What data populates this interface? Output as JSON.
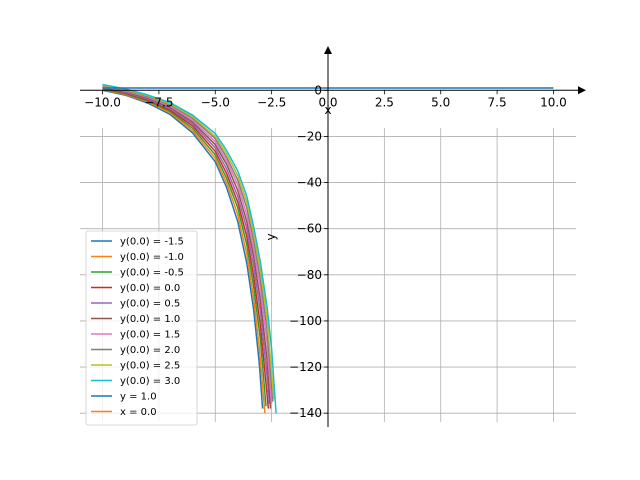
{
  "chart_data": {
    "type": "line",
    "title": "",
    "xlabel": "x",
    "ylabel": "y",
    "xlim": [
      -11,
      11
    ],
    "ylim": [
      -146,
      14
    ],
    "grid": true,
    "legend_position": "lower-left",
    "xticks": [
      -10.0,
      -7.5,
      -5.0,
      -2.5,
      0.0,
      2.5,
      5.0,
      7.5,
      10.0
    ],
    "xtick_labels": [
      "−10.0",
      "−7.5",
      "−5.0",
      "−2.5",
      "0.0",
      "2.5",
      "5.0",
      "7.5",
      "10.0"
    ],
    "yticks": [
      0,
      -20,
      -40,
      -60,
      -80,
      -100,
      -120,
      -140
    ],
    "ytick_labels": [
      "0",
      "−20",
      "−40",
      "−60",
      "−80",
      "−100",
      "−120",
      "−140"
    ],
    "series": [
      {
        "name": "y(0.0) = -1.5",
        "color": "#1f77b4",
        "points": [
          [
            -10.0,
            0.0
          ],
          [
            -9.0,
            -2.1
          ],
          [
            -8.0,
            -5.5
          ],
          [
            -7.0,
            -10.5
          ],
          [
            -6.0,
            -18.5
          ],
          [
            -5.0,
            -31.0
          ],
          [
            -4.5,
            -42.0
          ],
          [
            -4.0,
            -57.0
          ],
          [
            -3.6,
            -75.0
          ],
          [
            -3.3,
            -95.0
          ],
          [
            -3.05,
            -118.0
          ],
          [
            -2.9,
            -138.0
          ]
        ]
      },
      {
        "name": "y(0.0) = -1.0",
        "color": "#ff7f0e",
        "points": [
          [
            -10.0,
            0.3
          ],
          [
            -9.0,
            -1.8
          ],
          [
            -8.0,
            -5.0
          ],
          [
            -7.0,
            -9.8
          ],
          [
            -6.0,
            -17.5
          ],
          [
            -5.0,
            -29.5
          ],
          [
            -4.5,
            -40.0
          ],
          [
            -4.0,
            -54.0
          ],
          [
            -3.6,
            -71.0
          ],
          [
            -3.3,
            -90.0
          ],
          [
            -3.05,
            -111.0
          ],
          [
            -2.8,
            -140.0
          ]
        ]
      },
      {
        "name": "y(0.0) = -0.5",
        "color": "#2ca02c",
        "points": [
          [
            -10.0,
            0.6
          ],
          [
            -9.0,
            -1.5
          ],
          [
            -8.0,
            -4.6
          ],
          [
            -7.0,
            -9.2
          ],
          [
            -6.0,
            -16.5
          ],
          [
            -5.0,
            -28.0
          ],
          [
            -4.5,
            -38.0
          ],
          [
            -4.0,
            -51.0
          ],
          [
            -3.6,
            -67.0
          ],
          [
            -3.3,
            -85.0
          ],
          [
            -3.0,
            -108.0
          ],
          [
            -2.75,
            -137.0
          ]
        ]
      },
      {
        "name": "y(0.0) = 0.0",
        "color": "#d62728",
        "points": [
          [
            -10.0,
            0.9
          ],
          [
            -9.0,
            -1.2
          ],
          [
            -8.0,
            -4.2
          ],
          [
            -7.0,
            -8.6
          ],
          [
            -6.0,
            -15.5
          ],
          [
            -5.0,
            -26.5
          ],
          [
            -4.5,
            -36.0
          ],
          [
            -4.0,
            -48.5
          ],
          [
            -3.6,
            -63.5
          ],
          [
            -3.3,
            -80.5
          ],
          [
            -3.0,
            -102.0
          ],
          [
            -2.7,
            -132.0
          ],
          [
            -2.65,
            -138.0
          ]
        ]
      },
      {
        "name": "y(0.0) = 0.5",
        "color": "#9467bd",
        "points": [
          [
            -10.0,
            1.1
          ],
          [
            -9.0,
            -0.9
          ],
          [
            -8.0,
            -3.8
          ],
          [
            -7.0,
            -8.0
          ],
          [
            -6.0,
            -14.6
          ],
          [
            -5.0,
            -25.0
          ],
          [
            -4.5,
            -34.0
          ],
          [
            -4.0,
            -46.0
          ],
          [
            -3.6,
            -60.0
          ],
          [
            -3.3,
            -76.0
          ],
          [
            -3.0,
            -96.0
          ],
          [
            -2.7,
            -124.0
          ],
          [
            -2.6,
            -136.0
          ]
        ]
      },
      {
        "name": "y(0.0) = 1.0",
        "color": "#8c564b",
        "points": [
          [
            -10.0,
            1.4
          ],
          [
            -9.0,
            -0.6
          ],
          [
            -8.0,
            -3.4
          ],
          [
            -7.0,
            -7.4
          ],
          [
            -6.0,
            -13.8
          ],
          [
            -5.0,
            -23.6
          ],
          [
            -4.5,
            -32.0
          ],
          [
            -4.0,
            -43.5
          ],
          [
            -3.6,
            -57.0
          ],
          [
            -3.3,
            -72.0
          ],
          [
            -3.0,
            -91.0
          ],
          [
            -2.7,
            -117.0
          ],
          [
            -2.55,
            -138.0
          ]
        ]
      },
      {
        "name": "y(0.0) = 1.5",
        "color": "#e377c2",
        "points": [
          [
            -10.0,
            1.7
          ],
          [
            -9.0,
            -0.3
          ],
          [
            -8.0,
            -3.0
          ],
          [
            -7.0,
            -6.9
          ],
          [
            -6.0,
            -13.0
          ],
          [
            -5.0,
            -22.3
          ],
          [
            -4.5,
            -30.5
          ],
          [
            -4.0,
            -41.0
          ],
          [
            -3.6,
            -54.0
          ],
          [
            -3.3,
            -68.5
          ],
          [
            -3.0,
            -86.0
          ],
          [
            -2.7,
            -110.0
          ],
          [
            -2.5,
            -136.0
          ]
        ]
      },
      {
        "name": "y(0.0) = 2.0",
        "color": "#7f7f7f",
        "points": [
          [
            -10.0,
            2.0
          ],
          [
            -9.0,
            0.0
          ],
          [
            -8.0,
            -2.7
          ],
          [
            -7.0,
            -6.4
          ],
          [
            -6.0,
            -12.2
          ],
          [
            -5.0,
            -21.0
          ],
          [
            -4.5,
            -29.0
          ],
          [
            -4.0,
            -39.0
          ],
          [
            -3.6,
            -51.0
          ],
          [
            -3.3,
            -65.0
          ],
          [
            -3.0,
            -82.0
          ],
          [
            -2.7,
            -104.0
          ],
          [
            -2.45,
            -135.0
          ]
        ]
      },
      {
        "name": "y(0.0) = 2.5",
        "color": "#bcbd22",
        "points": [
          [
            -10.0,
            2.2
          ],
          [
            -9.0,
            0.3
          ],
          [
            -8.0,
            -2.3
          ],
          [
            -7.0,
            -5.9
          ],
          [
            -6.0,
            -11.5
          ],
          [
            -5.0,
            -20.0
          ],
          [
            -4.5,
            -27.5
          ],
          [
            -4.0,
            -37.0
          ],
          [
            -3.6,
            -48.5
          ],
          [
            -3.3,
            -62.0
          ],
          [
            -3.0,
            -78.0
          ],
          [
            -2.7,
            -99.0
          ],
          [
            -2.4,
            -134.0
          ]
        ]
      },
      {
        "name": "y(0.0) = 3.0",
        "color": "#17becf",
        "points": [
          [
            -10.0,
            2.5
          ],
          [
            -9.0,
            0.6
          ],
          [
            -8.0,
            -2.0
          ],
          [
            -7.0,
            -5.4
          ],
          [
            -6.0,
            -10.8
          ],
          [
            -5.0,
            -18.8
          ],
          [
            -4.5,
            -26.0
          ],
          [
            -4.0,
            -35.0
          ],
          [
            -3.6,
            -46.0
          ],
          [
            -3.3,
            -59.0
          ],
          [
            -3.0,
            -74.5
          ],
          [
            -2.7,
            -94.0
          ],
          [
            -2.5,
            -112.0
          ],
          [
            -2.3,
            -140.0
          ]
        ]
      },
      {
        "name": "y = 1.0",
        "color": "#1f77b4",
        "points": [
          [
            -10.0,
            1.0
          ],
          [
            10.0,
            1.0
          ]
        ]
      },
      {
        "name": "x = 0.0",
        "color": "#ff7f0e",
        "points": [
          [
            0.0,
            0.0
          ],
          [
            0.0,
            0.0
          ]
        ]
      }
    ]
  }
}
